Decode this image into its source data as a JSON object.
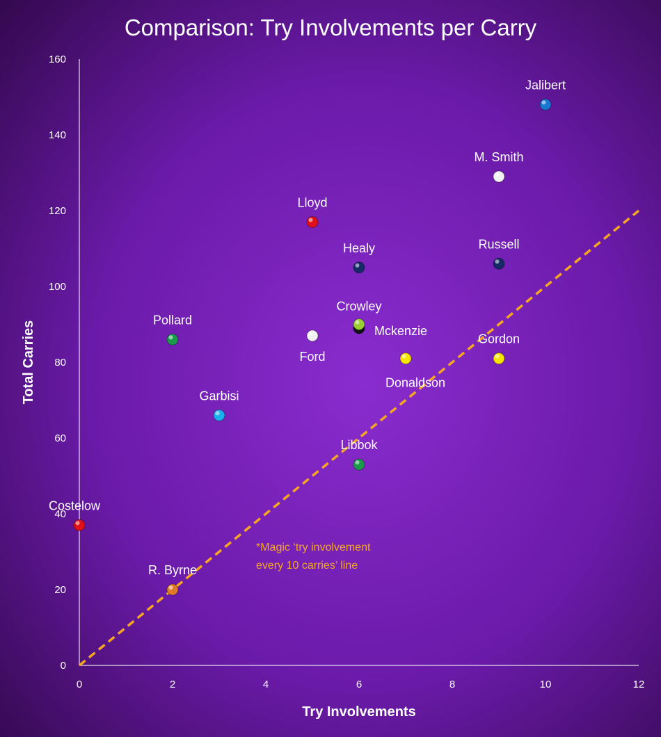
{
  "chart_data": {
    "type": "scatter",
    "title": "Comparison: Try Involvements per Carry",
    "xlabel": "Try Involvements",
    "ylabel": "Total Carries",
    "xlim": [
      0,
      12
    ],
    "ylim": [
      0,
      160
    ],
    "xticks": [
      0,
      2,
      4,
      6,
      8,
      10,
      12
    ],
    "yticks": [
      0,
      20,
      40,
      60,
      80,
      100,
      120,
      140,
      160
    ],
    "grid": false,
    "legend": "none",
    "points": [
      {
        "label": "Jalibert",
        "x": 10,
        "y": 148,
        "color": "#1a78d0"
      },
      {
        "label": "M. Smith",
        "x": 9,
        "y": 129,
        "color": "#f2f2f2"
      },
      {
        "label": "Lloyd",
        "x": 5,
        "y": 117,
        "color": "#e0101a"
      },
      {
        "label": "Healy",
        "x": 6,
        "y": 105,
        "color": "#152a66"
      },
      {
        "label": "Russell",
        "x": 9,
        "y": 106,
        "color": "#152a66"
      },
      {
        "label": "Crowley",
        "x": 6,
        "y": 90,
        "color": "#9acd32"
      },
      {
        "label": "Mckenzie",
        "x": 6,
        "y": 89,
        "color": "#111111"
      },
      {
        "label": "Pollard",
        "x": 2,
        "y": 86,
        "color": "#1a9a4a"
      },
      {
        "label": "Ford",
        "x": 5,
        "y": 87,
        "color": "#f2f2f2"
      },
      {
        "label": "Gordon",
        "x": 9,
        "y": 81,
        "color": "#f5e400"
      },
      {
        "label": "Donaldson",
        "x": 7,
        "y": 81,
        "color": "#f5e400"
      },
      {
        "label": "Garbisi",
        "x": 3,
        "y": 66,
        "color": "#1ab0f0"
      },
      {
        "label": "Libbok",
        "x": 6,
        "y": 53,
        "color": "#1a9a4a"
      },
      {
        "label": "Costelow",
        "x": 0,
        "y": 37,
        "color": "#e0101a"
      },
      {
        "label": "R. Byrne",
        "x": 2,
        "y": 20,
        "color": "#e07a2a"
      }
    ],
    "reference_line": {
      "from": [
        0,
        0
      ],
      "to": [
        12,
        120
      ],
      "style": "dashed",
      "color": "#f5a623",
      "annotation": [
        "*Magic ‘try involvement",
        "every 10 carries’ line"
      ]
    }
  },
  "colors": {
    "background_center": "#8a2ccf",
    "background_edge": "#3a0a5e",
    "axis": "#ffffff",
    "text": "#ffffff"
  }
}
